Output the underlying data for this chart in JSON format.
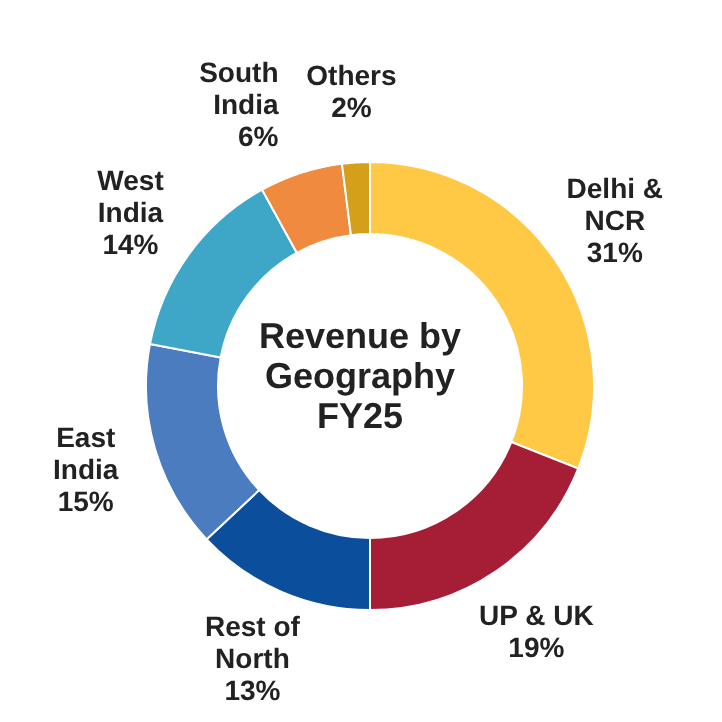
{
  "chart_data": {
    "type": "donut",
    "title": "Revenue by Geography FY25",
    "categories": [
      "Delhi & NCR",
      "UP & UK",
      "Rest of North",
      "East India",
      "West India",
      "South India",
      "Others"
    ],
    "values": [
      31,
      19,
      13,
      15,
      14,
      6,
      2
    ],
    "value_labels": [
      "31%",
      "19%",
      "13%",
      "15%",
      "14%",
      "6%",
      "2%"
    ],
    "colors": [
      "#ffc845",
      "#a51e36",
      "#0b4f9c",
      "#4a7cbf",
      "#3ea7c8",
      "#f08a3e",
      "#d4a01a"
    ],
    "legend": false
  }
}
